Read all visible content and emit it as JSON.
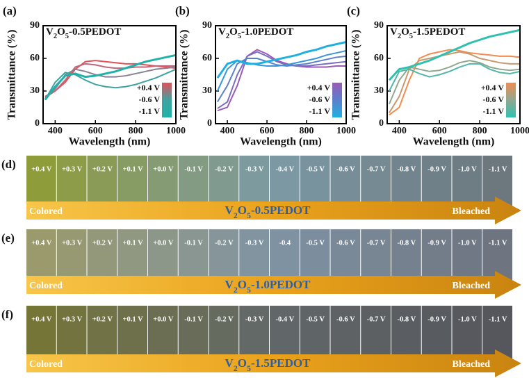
{
  "chart_data": [
    {
      "type": "line",
      "panel": "(a)",
      "title_parts": [
        "V",
        "2",
        "O",
        "5",
        "-0.5PEDOT"
      ],
      "xlabel": "Wavelength (nm)",
      "ylabel": "Transmittance (%)",
      "x": [
        350,
        400,
        450,
        500,
        550,
        600,
        650,
        700,
        750,
        800,
        850,
        900,
        950,
        1000
      ],
      "xlim": [
        340,
        1000
      ],
      "xticks": [
        400,
        600,
        800,
        1000
      ],
      "ylim": [
        0,
        90
      ],
      "yticks": [
        0,
        30,
        60,
        90
      ],
      "series": [
        {
          "color": "#e2505a",
          "values": [
            25,
            30,
            38,
            50,
            57,
            58,
            57,
            56,
            55,
            55,
            54,
            53,
            52,
            51
          ]
        },
        {
          "color": "#c0667a",
          "values": [
            24,
            30,
            40,
            52,
            55,
            54,
            52,
            51,
            51,
            52,
            52,
            53,
            53,
            53
          ]
        },
        {
          "color": "#8a8090",
          "values": [
            23,
            32,
            45,
            50,
            48,
            45,
            43,
            43,
            44,
            46,
            48,
            50,
            51,
            52
          ]
        },
        {
          "color": "#3ea3a0",
          "values": [
            22,
            38,
            47,
            45,
            40,
            36,
            34,
            33,
            34,
            36,
            39,
            42,
            46,
            50
          ]
        },
        {
          "color": "#1fb2a8",
          "values": [
            22,
            34,
            44,
            46,
            43,
            44,
            46,
            48,
            51,
            54,
            57,
            59,
            61,
            63
          ]
        }
      ],
      "legend": {
        "labels": [
          "+0.4 V",
          "-0.6 V",
          "-1.1 V"
        ],
        "colors": [
          "#e2505a",
          "#3ea3a0",
          "#1fb2a8"
        ]
      }
    },
    {
      "type": "line",
      "panel": "(b)",
      "title_parts": [
        "V",
        "2",
        "O",
        "5",
        "-1.0PEDOT"
      ],
      "xlabel": "Wavelength (nm)",
      "ylabel": "Transmittance (%)",
      "x": [
        350,
        400,
        450,
        500,
        550,
        600,
        650,
        700,
        750,
        800,
        850,
        900,
        950,
        1000
      ],
      "xlim": [
        340,
        1000
      ],
      "xticks": [
        400,
        600,
        800,
        1000
      ],
      "ylim": [
        0,
        90
      ],
      "yticks": [
        0,
        30,
        60,
        90
      ],
      "series": [
        {
          "color": "#9b59b6",
          "values": [
            12,
            15,
            35,
            62,
            68,
            64,
            58,
            55,
            53,
            52,
            52,
            52,
            53,
            53
          ]
        },
        {
          "color": "#7a6cc0",
          "values": [
            14,
            20,
            45,
            62,
            66,
            62,
            57,
            54,
            53,
            53,
            54,
            55,
            56,
            57
          ]
        },
        {
          "color": "#5a80cc",
          "values": [
            20,
            35,
            55,
            60,
            60,
            57,
            54,
            53,
            54,
            55,
            57,
            59,
            61,
            62
          ]
        },
        {
          "color": "#3a96d8",
          "values": [
            30,
            50,
            58,
            56,
            54,
            53,
            53,
            54,
            56,
            58,
            60,
            63,
            65,
            67
          ]
        },
        {
          "color": "#20b0e0",
          "values": [
            42,
            55,
            58,
            55,
            55,
            57,
            59,
            61,
            63,
            66,
            68,
            71,
            73,
            75
          ]
        }
      ],
      "legend": {
        "labels": [
          "+0.4 V",
          "-0.6 V",
          "-1.1 V"
        ],
        "colors": [
          "#9b59b6",
          "#5a80cc",
          "#20b0e0"
        ]
      }
    },
    {
      "type": "line",
      "panel": "(c)",
      "title_parts": [
        "V",
        "2",
        "O",
        "5",
        "-1.5PEDOT"
      ],
      "xlabel": "Wavelength (nm)",
      "ylabel": "Transmittance (%)",
      "x": [
        350,
        400,
        450,
        500,
        550,
        600,
        650,
        700,
        750,
        800,
        850,
        900,
        950,
        1000
      ],
      "xlim": [
        340,
        1000
      ],
      "xticks": [
        400,
        600,
        800,
        1000
      ],
      "ylim": [
        0,
        90
      ],
      "yticks": [
        0,
        30,
        60,
        90
      ],
      "series": [
        {
          "color": "#f08c50",
          "values": [
            8,
            15,
            40,
            60,
            64,
            66,
            68,
            67,
            65,
            64,
            63,
            62,
            62,
            61
          ]
        },
        {
          "color": "#c89a70",
          "values": [
            10,
            25,
            50,
            58,
            60,
            62,
            64,
            66,
            64,
            60,
            58,
            56,
            55,
            55
          ]
        },
        {
          "color": "#90a890",
          "values": [
            18,
            40,
            52,
            50,
            48,
            49,
            52,
            56,
            58,
            56,
            52,
            50,
            49,
            50
          ]
        },
        {
          "color": "#50b8a8",
          "values": [
            30,
            48,
            50,
            46,
            43,
            45,
            48,
            52,
            55,
            55,
            50,
            47,
            46,
            48
          ]
        },
        {
          "color": "#30c0b0",
          "values": [
            40,
            50,
            52,
            55,
            58,
            62,
            66,
            70,
            74,
            77,
            80,
            82,
            84,
            86
          ]
        }
      ],
      "legend": {
        "labels": [
          "+0.4 V",
          "-0.6 V",
          "-1.1 V"
        ],
        "colors": [
          "#f08c50",
          "#90a890",
          "#30c0b0"
        ]
      }
    }
  ],
  "strips": [
    {
      "panel": "(d)",
      "voltages": [
        "+0.4 V",
        "+0.3 V",
        "+0.2 V",
        "+0.1 V",
        "+0.0 V",
        "-0.1 V",
        "-0.2 V",
        "-0.3 V",
        "-0.4 V",
        "-0.5 V",
        "-0.6 V",
        "-0.7 V",
        "-0.8 V",
        "-0.9 V",
        "-1.0 V",
        "-1.1 V"
      ],
      "left": "Colored",
      "title_parts": [
        "V",
        "2",
        "O",
        "5",
        "-0.5PEDOT"
      ],
      "right": "Bleached",
      "tile_colors": [
        "#8e9c3a",
        "#7c9aa6",
        "#6c777e"
      ]
    },
    {
      "panel": "(e)",
      "voltages": [
        "+0.4 V",
        "+0.3 V",
        "+0.2 V",
        "+0.1 V",
        "+0.0 V",
        "-0.1 V",
        "-0.2 V",
        "-0.3 V",
        "-0.4",
        "-0.5 V",
        "-0.6 V",
        "-0.7 V",
        "-0.8 V",
        "-0.9 V",
        "-1.0 V",
        "-1.1 V"
      ],
      "left": "Colored",
      "title_parts": [
        "V",
        "2",
        "O",
        "5",
        "-1.0PEDOT"
      ],
      "right": "Bleached",
      "tile_colors": [
        "#9a9a6c",
        "#8094a4",
        "#6e7480"
      ]
    },
    {
      "panel": "(f)",
      "voltages": [
        "+0.4 V",
        "+0.3 V",
        "+0.2 V",
        "+0.1 V",
        "+0.0 V",
        "-0.1 V",
        "-0.2 V",
        "-0.3 V",
        "-0.4 V",
        "-0.5 V",
        "-0.6 V",
        "-0.7 V",
        "-0.8 V",
        "-0.9 V",
        "-1.0 V",
        "-1.1 V"
      ],
      "left": "Colored",
      "title_parts": [
        "V",
        "2",
        "O",
        "5",
        "-1.5PEDOT"
      ],
      "right": "Bleached",
      "tile_colors": [
        "#767538",
        "#62686a",
        "#55575c"
      ]
    }
  ]
}
